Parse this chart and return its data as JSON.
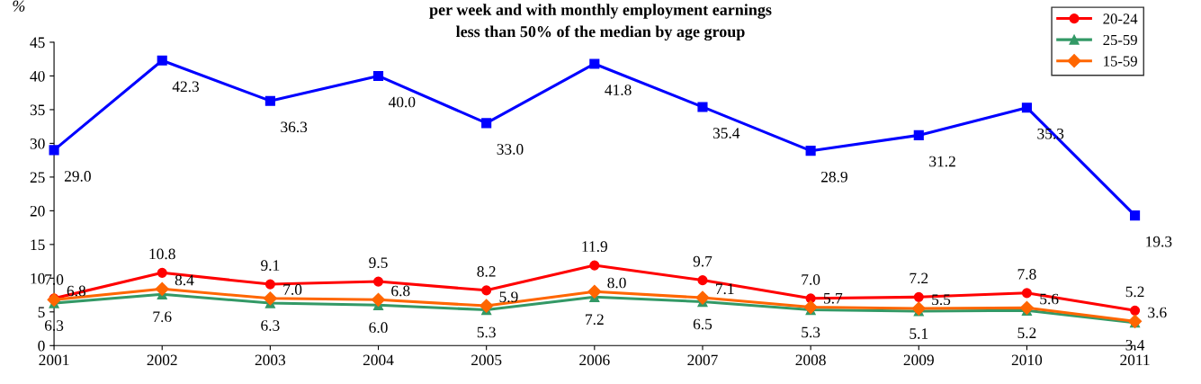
{
  "chart_data": {
    "type": "line",
    "title": "per week and with monthly employment earnings\nless than 50% of the median by age group",
    "ylabel": "%",
    "categories": [
      "2001",
      "2002",
      "2003",
      "2004",
      "2005",
      "2006",
      "2007",
      "2008",
      "2009",
      "2010",
      "2011"
    ],
    "series": [
      {
        "color": "#0000ff",
        "marker": "square",
        "values": [
          29.0,
          42.3,
          36.3,
          40.0,
          33.0,
          41.8,
          35.4,
          28.9,
          31.2,
          35.3,
          19.3
        ],
        "value_labels": [
          "29.0",
          "42.3",
          "36.3",
          "40.0",
          "33.0",
          "41.8",
          "35.4",
          "28.9",
          "31.2",
          "35.3",
          "19.3"
        ]
      },
      {
        "name": "20-24",
        "color": "#ff0000",
        "marker": "circle",
        "values": [
          7.0,
          10.8,
          9.1,
          9.5,
          8.2,
          11.9,
          9.7,
          7.0,
          7.2,
          7.8,
          5.2
        ],
        "value_labels": [
          "7.0",
          "10.8",
          "9.1",
          "9.5",
          "8.2",
          "11.9",
          "9.7",
          "7.0",
          "7.2",
          "7.8",
          "5.2"
        ]
      },
      {
        "name": "25-59",
        "color": "#339966",
        "marker": "triangle",
        "values": [
          6.3,
          7.6,
          6.3,
          6.0,
          5.3,
          7.2,
          6.5,
          5.3,
          5.1,
          5.2,
          3.4
        ],
        "value_labels": [
          "6.3",
          "7.6",
          "6.3",
          "6.0",
          "5.3",
          "7.2",
          "6.5",
          "5.3",
          "5.1",
          "5.2",
          "3.4"
        ]
      },
      {
        "name": "15-59",
        "color": "#ff6600",
        "marker": "diamond",
        "values": [
          6.8,
          8.4,
          7.0,
          6.8,
          5.9,
          8.0,
          7.1,
          5.7,
          5.5,
          5.6,
          3.6
        ],
        "value_labels": [
          "6.8",
          "8.4",
          "7.0",
          "6.8",
          "5.9",
          "8.0",
          "7.1",
          "5.7",
          "5.5",
          "5.6",
          "3.6"
        ]
      }
    ],
    "ylim": [
      0,
      45
    ],
    "yticks": [
      0,
      5,
      10,
      15,
      20,
      25,
      30,
      35,
      40,
      45
    ],
    "grid": false,
    "legend": "top right",
    "line_style": "solid"
  }
}
